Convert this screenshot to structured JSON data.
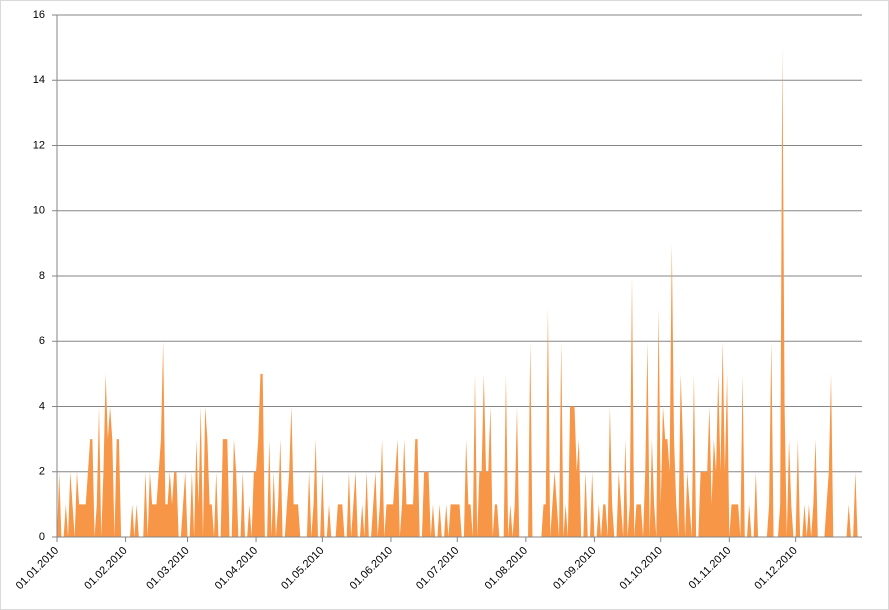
{
  "chart_data": {
    "type": "area",
    "color": "#f79646",
    "grid": true,
    "ylim": [
      0,
      16
    ],
    "yticks": [
      0,
      2,
      4,
      6,
      8,
      10,
      12,
      14,
      16
    ],
    "categories": [
      "01.01.2010",
      null,
      null,
      null,
      null,
      null,
      null,
      null,
      null,
      null,
      null,
      null,
      null,
      null,
      null,
      null,
      null,
      null,
      null,
      null,
      null,
      null,
      null,
      null,
      null,
      null,
      null,
      null,
      null,
      null,
      null,
      "01.02.2010",
      null,
      null,
      null,
      null,
      null,
      null,
      null,
      null,
      null,
      null,
      null,
      null,
      null,
      null,
      null,
      null,
      null,
      null,
      null,
      null,
      null,
      null,
      null,
      null,
      null,
      null,
      null,
      "01.03.2010",
      null,
      null,
      null,
      null,
      null,
      null,
      null,
      null,
      null,
      null,
      null,
      null,
      null,
      null,
      null,
      null,
      null,
      null,
      null,
      null,
      null,
      null,
      null,
      null,
      null,
      null,
      null,
      null,
      null,
      null,
      "01.04.2010",
      null,
      null,
      null,
      null,
      null,
      null,
      null,
      null,
      null,
      null,
      null,
      null,
      null,
      null,
      null,
      null,
      null,
      null,
      null,
      null,
      null,
      null,
      null,
      null,
      null,
      null,
      null,
      null,
      null,
      "01.05.2010",
      null,
      null,
      null,
      null,
      null,
      null,
      null,
      null,
      null,
      null,
      null,
      null,
      null,
      null,
      null,
      null,
      null,
      null,
      null,
      null,
      null,
      null,
      null,
      null,
      null,
      null,
      null,
      null,
      null,
      null,
      "01.06.2010",
      null,
      null,
      null,
      null,
      null,
      null,
      null,
      null,
      null,
      null,
      null,
      null,
      null,
      null,
      null,
      null,
      null,
      null,
      null,
      null,
      null,
      null,
      null,
      null,
      null,
      null,
      null,
      null,
      null,
      "01.07.2010",
      null,
      null,
      null,
      null,
      null,
      null,
      null,
      null,
      null,
      null,
      null,
      null,
      null,
      null,
      null,
      null,
      null,
      null,
      null,
      null,
      null,
      null,
      null,
      null,
      null,
      null,
      null,
      null,
      null,
      null,
      "01.08.2010",
      null,
      null,
      null,
      null,
      null,
      null,
      null,
      null,
      null,
      null,
      null,
      null,
      null,
      null,
      null,
      null,
      null,
      null,
      null,
      null,
      null,
      null,
      null,
      null,
      null,
      null,
      null,
      null,
      null,
      null,
      "01.09.2010",
      null,
      null,
      null,
      null,
      null,
      null,
      null,
      null,
      null,
      null,
      null,
      null,
      null,
      null,
      null,
      null,
      null,
      null,
      null,
      null,
      null,
      null,
      null,
      null,
      null,
      null,
      null,
      null,
      null,
      "01.10.2010",
      null,
      null,
      null,
      null,
      null,
      null,
      null,
      null,
      null,
      null,
      null,
      null,
      null,
      null,
      null,
      null,
      null,
      null,
      null,
      null,
      null,
      null,
      null,
      null,
      null,
      null,
      null,
      null,
      null,
      null,
      "01.11.2010",
      null,
      null,
      null,
      null,
      null,
      null,
      null,
      null,
      null,
      null,
      null,
      null,
      null,
      null,
      null,
      null,
      null,
      null,
      null,
      null,
      null,
      null,
      null,
      null,
      null,
      null,
      null,
      null,
      null,
      "01.12.2010",
      null,
      null,
      null,
      null,
      null,
      null,
      null,
      null,
      null,
      null,
      null,
      null,
      null,
      null,
      null,
      null,
      null,
      null,
      null,
      null,
      null,
      null,
      null,
      null,
      null,
      null,
      null,
      null,
      null,
      null
    ],
    "values": [
      0,
      2,
      0,
      0,
      1,
      0,
      2,
      1,
      0,
      2,
      1,
      1,
      1,
      1,
      2,
      3,
      3,
      0,
      1,
      4,
      0,
      2,
      5,
      3,
      4,
      3,
      0,
      3,
      3,
      0,
      0,
      0,
      0,
      0,
      1,
      0,
      1,
      0,
      0,
      0,
      2,
      0,
      2,
      1,
      1,
      1,
      2,
      3,
      6,
      1,
      1,
      2,
      1,
      2,
      2,
      0,
      0,
      1,
      2,
      0,
      0,
      2,
      0,
      3,
      1,
      4,
      0,
      4,
      3,
      1,
      1,
      0,
      2,
      0,
      0,
      3,
      3,
      3,
      0,
      0,
      3,
      2,
      0,
      0,
      2,
      0,
      0,
      1,
      0,
      2,
      2,
      3,
      5,
      5,
      0,
      0,
      3,
      0,
      2,
      0,
      1,
      3,
      0,
      0,
      1,
      2,
      4,
      1,
      1,
      1,
      0,
      0,
      0,
      0,
      2,
      0,
      1,
      3,
      0,
      0,
      2,
      0,
      0,
      1,
      0,
      0,
      0,
      1,
      1,
      1,
      0,
      0,
      2,
      0,
      1,
      2,
      0,
      0,
      1,
      0,
      2,
      0,
      0,
      1,
      2,
      0,
      1,
      3,
      0,
      1,
      1,
      1,
      1,
      2,
      3,
      0,
      1,
      3,
      1,
      1,
      1,
      1,
      3,
      3,
      0,
      0,
      2,
      2,
      2,
      0,
      1,
      0,
      0,
      1,
      0,
      0,
      1,
      0,
      1,
      1,
      1,
      1,
      1,
      0,
      0,
      3,
      1,
      1,
      0,
      5,
      0,
      2,
      2,
      5,
      2,
      2,
      4,
      0,
      1,
      1,
      0,
      0,
      0,
      5,
      0,
      1,
      0,
      1,
      4,
      0,
      0,
      0,
      0,
      0,
      6,
      0,
      0,
      0,
      0,
      0,
      1,
      1,
      7,
      0,
      1,
      2,
      1,
      0,
      6,
      0,
      1,
      0,
      4,
      4,
      4,
      2,
      3,
      0,
      0,
      2,
      0,
      0,
      2,
      0,
      0,
      1,
      0,
      1,
      1,
      0,
      4,
      1,
      0,
      0,
      2,
      1,
      0,
      3,
      0,
      1,
      8,
      0,
      1,
      1,
      1,
      0,
      2,
      6,
      0,
      3,
      1,
      0,
      7,
      1,
      4,
      3,
      3,
      2,
      9,
      3,
      1,
      0,
      5,
      3,
      0,
      2,
      1,
      0,
      5,
      0,
      0,
      2,
      2,
      2,
      2,
      4,
      1,
      3,
      2,
      5,
      2,
      6,
      2,
      5,
      0,
      1,
      1,
      1,
      1,
      0,
      5,
      0,
      0,
      1,
      0,
      0,
      2,
      0,
      0,
      0,
      0,
      0,
      1,
      6,
      0,
      0,
      0,
      1,
      15,
      4,
      0,
      3,
      1,
      0,
      0,
      3,
      0,
      0,
      1,
      0,
      1,
      0,
      1,
      3,
      0,
      0,
      0,
      0,
      1,
      2,
      5,
      0,
      0,
      0,
      0,
      0,
      0,
      0,
      1,
      0,
      0,
      2,
      0,
      0,
      0
    ]
  }
}
